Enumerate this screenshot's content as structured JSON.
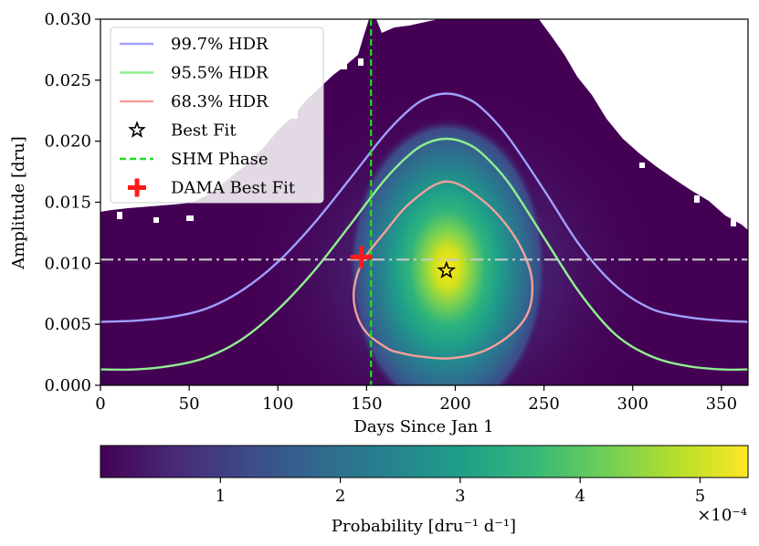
{
  "chart_data": {
    "type": "heatmap",
    "title": "",
    "xlabel": "Days Since Jan 1",
    "ylabel": "Amplitude [dru]",
    "xlim": [
      0,
      365
    ],
    "ylim": [
      0,
      0.03
    ],
    "xticks": [
      0,
      50,
      100,
      150,
      200,
      250,
      300,
      350
    ],
    "xtick_labels": [
      "0",
      "50",
      "100",
      "150",
      "200",
      "250",
      "300",
      "350"
    ],
    "yticks": [
      0.0,
      0.005,
      0.01,
      0.015,
      0.02,
      0.025,
      0.03
    ],
    "ytick_labels": [
      "0.000",
      "0.005",
      "0.010",
      "0.015",
      "0.020",
      "0.025",
      "0.030"
    ],
    "colormap": "viridis",
    "colorbar": {
      "label": "Probability [dru⁻¹ d⁻¹]",
      "range": [
        0,
        5.4
      ],
      "ticks": [
        1,
        2,
        3,
        4,
        5
      ],
      "tick_labels": [
        "1",
        "2",
        "3",
        "4",
        "5"
      ],
      "multiplier": "×10⁻⁴"
    },
    "best_fit": {
      "x": 195,
      "y": 0.0094,
      "label": "Best Fit"
    },
    "dama_best_fit": {
      "x": 147,
      "y": 0.0105,
      "label": "DAMA Best Fit",
      "color": "#ff1a1a"
    },
    "shm_phase": {
      "x": 152.5,
      "label": "SHM Phase",
      "color": "#22dd22"
    },
    "dama_amplitude_line": {
      "y": 0.0103,
      "color": "#c9c9c9"
    },
    "contours": [
      {
        "name": "99.7% HDR",
        "color": "#a0a0ff",
        "x": [
          0,
          20,
          40,
          60,
          80,
          100,
          120,
          140,
          160,
          175,
          185,
          195,
          205,
          215,
          230,
          250,
          270,
          290,
          310,
          330,
          350,
          365
        ],
        "y": [
          0.0052,
          0.0053,
          0.0056,
          0.0063,
          0.0078,
          0.0101,
          0.0132,
          0.0168,
          0.0205,
          0.0227,
          0.0236,
          0.0239,
          0.0236,
          0.0227,
          0.0203,
          0.016,
          0.0115,
          0.0082,
          0.0063,
          0.0056,
          0.0053,
          0.0052
        ]
      },
      {
        "name": "95.5% HDR",
        "color": "#90ee90",
        "x": [
          0,
          20,
          40,
          60,
          80,
          100,
          120,
          140,
          160,
          175,
          185,
          195,
          205,
          215,
          230,
          250,
          270,
          290,
          310,
          330,
          350,
          365
        ],
        "y": [
          0.0013,
          0.0013,
          0.0016,
          0.0023,
          0.0038,
          0.0062,
          0.0093,
          0.013,
          0.0168,
          0.019,
          0.0199,
          0.0202,
          0.0199,
          0.019,
          0.0166,
          0.0121,
          0.0076,
          0.0042,
          0.0024,
          0.0016,
          0.0013,
          0.0013
        ]
      },
      {
        "name": "68.3% HDR",
        "color": "#f4a09a",
        "x": [
          162,
          150,
          144,
          143,
          148,
          160,
          175,
          195,
          215,
          232,
          242,
          243,
          238,
          226,
          212,
          195,
          178,
          168,
          162
        ],
        "y": [
          0.003,
          0.0043,
          0.006,
          0.008,
          0.0102,
          0.0125,
          0.015,
          0.0167,
          0.0152,
          0.0125,
          0.0095,
          0.007,
          0.0052,
          0.0036,
          0.0026,
          0.0022,
          0.0024,
          0.0027,
          0.003
        ]
      }
    ],
    "legend": {
      "location": "upper left",
      "entries": [
        "99.7% HDR",
        "95.5% HDR",
        "68.3% HDR",
        "Best Fit",
        "SHM Phase",
        "DAMA Best Fit"
      ]
    },
    "colors": {
      "background": "#440154",
      "white_region": "#ffffff"
    }
  }
}
